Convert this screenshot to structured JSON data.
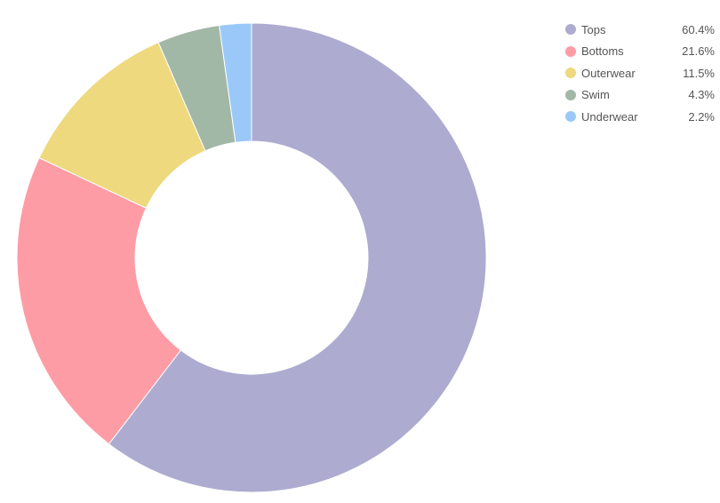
{
  "chart_data": {
    "type": "pie",
    "variant": "donut",
    "legend_position": "top-right",
    "slices": [
      {
        "label": "Tops",
        "value": 60.4,
        "display": "60.4%",
        "color": "#adabd0"
      },
      {
        "label": "Bottoms",
        "value": 21.6,
        "display": "21.6%",
        "color": "#fe9ca6"
      },
      {
        "label": "Outerwear",
        "value": 11.5,
        "display": "11.5%",
        "color": "#eed97f"
      },
      {
        "label": "Swim",
        "value": 4.3,
        "display": "4.3%",
        "color": "#a2b8a6"
      },
      {
        "label": "Underwear",
        "value": 2.2,
        "display": "2.2%",
        "color": "#9ac8f8"
      }
    ]
  }
}
